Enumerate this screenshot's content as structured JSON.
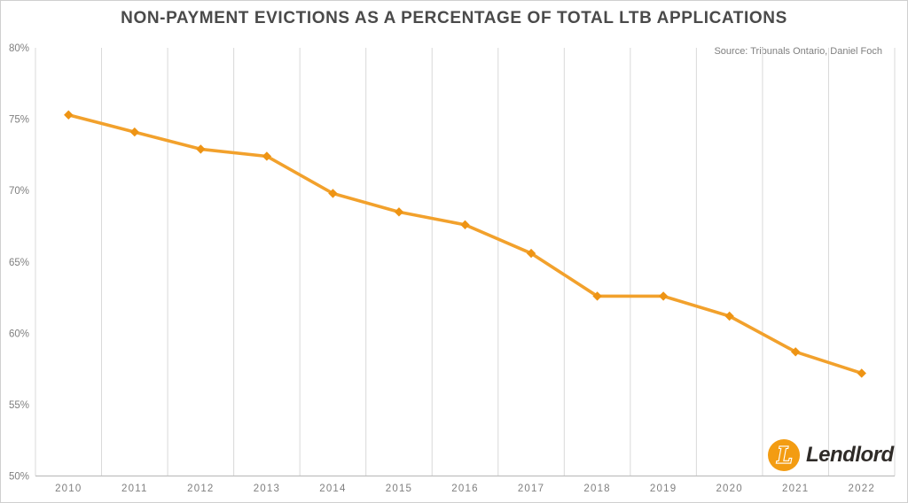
{
  "chart_data": {
    "type": "line",
    "title": "NON-PAYMENT EVICTIONS AS A PERCENTAGE OF TOTAL LTB APPLICATIONS",
    "source": "Source: Tribunals Ontario, Daniel Foch",
    "categories": [
      "2010",
      "2011",
      "2012",
      "2013",
      "2014",
      "2015",
      "2016",
      "2017",
      "2018",
      "2019",
      "2020",
      "2021",
      "2022"
    ],
    "values": [
      75.3,
      74.1,
      72.9,
      72.4,
      69.8,
      68.5,
      67.6,
      65.6,
      62.6,
      62.6,
      61.2,
      58.7,
      57.2
    ],
    "xlabel": "",
    "ylabel": "",
    "ylim": [
      50,
      80
    ],
    "ytick_step": 5,
    "ytick_labels": [
      "80%",
      "75%",
      "70%",
      "65%",
      "60%",
      "55%",
      "50%"
    ],
    "grid": "vertical-only",
    "legend": "none",
    "line_color": "#F2A12C",
    "marker_color": "#EE9414",
    "marker_shape": "diamond"
  },
  "branding": {
    "logo_text": "Lendlord",
    "logo_icon": "lendlord-circle-l-icon",
    "logo_circle_color": "#F39C12",
    "logo_letter": "L",
    "logo_text_color": "#2f2b28"
  },
  "colors": {
    "title": "#4A4A4A",
    "axis_labels": "#7F7F7F",
    "gridline": "#D9D9D9",
    "axis_line": "#BFBFBF",
    "background": "#FFFFFF",
    "border": "#CFCFCF"
  }
}
